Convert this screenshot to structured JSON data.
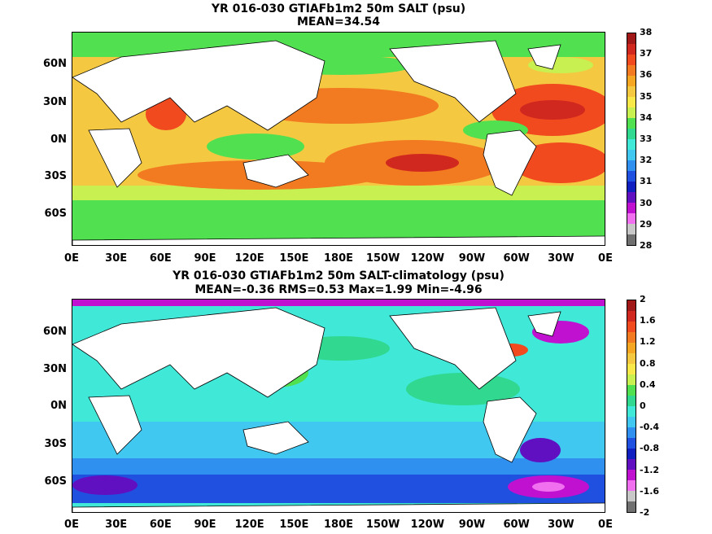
{
  "top": {
    "title": "YR 016-030 GTIAFb1m2 50m SALT (psu)",
    "subtitle": "MEAN=34.54",
    "colorbar_labels": [
      "38",
      "37",
      "36",
      "35",
      "34",
      "33",
      "32",
      "31",
      "30",
      "29",
      "28"
    ],
    "colorbar_colors": [
      "#a01818",
      "#d0281e",
      "#f04a1e",
      "#f27a20",
      "#f5a623",
      "#f5c842",
      "#f8e84a",
      "#c8f050",
      "#50e050",
      "#30d890",
      "#40e8d8",
      "#40c8f0",
      "#3090f0",
      "#2050e0",
      "#1020c0",
      "#6010c0",
      "#c010d0",
      "#f070f0",
      "#c8c8c8",
      "#707070"
    ]
  },
  "bottom": {
    "title": "YR 016-030 GTIAFb1m2 50m SALT-climatology (psu)",
    "subtitle": "MEAN=-0.36   RMS=0.53   Max=1.99   Min=-4.96",
    "colorbar_labels": [
      "2",
      "1.6",
      "1.2",
      "0.8",
      "0.4",
      "0",
      "-0.4",
      "-0.8",
      "-1.2",
      "-1.6",
      "-2"
    ],
    "colorbar_colors": [
      "#a01818",
      "#d0281e",
      "#f04a1e",
      "#f27a20",
      "#f5a623",
      "#f5c842",
      "#f8e84a",
      "#c8f050",
      "#50e050",
      "#30d890",
      "#40e8d8",
      "#40c8f0",
      "#3090f0",
      "#2050e0",
      "#1020c0",
      "#6010c0",
      "#c010d0",
      "#f070f0",
      "#c8c8c8",
      "#707070"
    ]
  },
  "lat_labels": [
    "60N",
    "30N",
    "0N",
    "30S",
    "60S"
  ],
  "lon_labels": [
    "0E",
    "30E",
    "60E",
    "90E",
    "120E",
    "150E",
    "180E",
    "150W",
    "120W",
    "90W",
    "60W",
    "30W",
    "0E"
  ]
}
